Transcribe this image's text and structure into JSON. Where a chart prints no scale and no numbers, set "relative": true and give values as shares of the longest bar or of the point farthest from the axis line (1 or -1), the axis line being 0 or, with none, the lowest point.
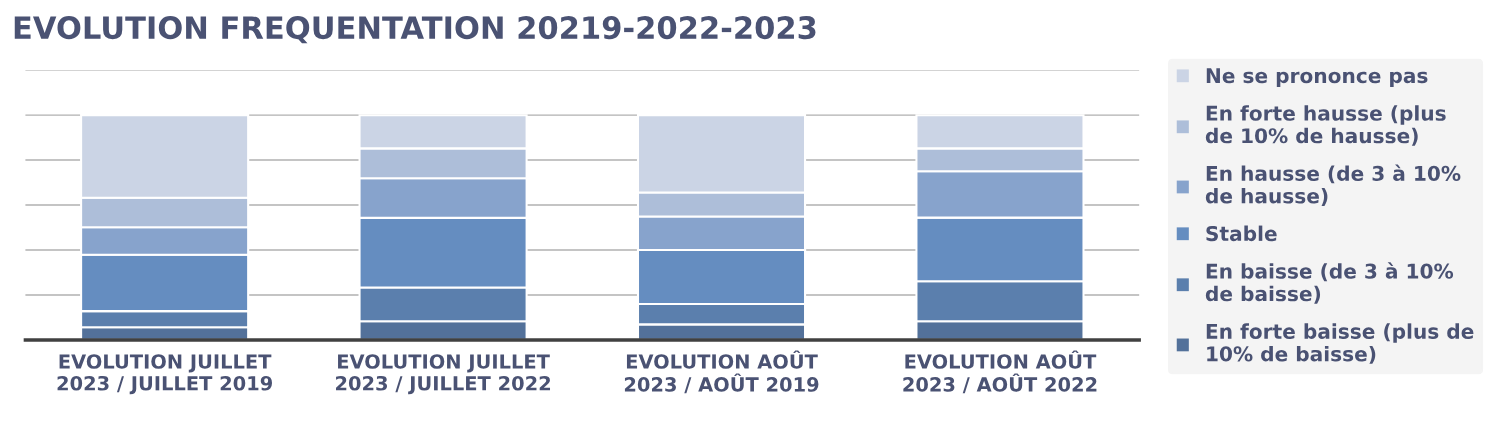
{
  "chart_data": {
    "type": "bar",
    "title": "EVOLUTION FREQUENTATION 20219-2022-2023",
    "categories": [
      "EVOLUTION JUILLET\n2023 / JUILLET 2019",
      "EVOLUTION JUILLET\n2023 / JUILLET 2022",
      "EVOLUTION AOÛT\n2023 / AOÛT 2019",
      "EVOLUTION AOÛT\n2023 / AOÛT 2022"
    ],
    "relative": true,
    "stacked": true,
    "grid": "y",
    "legend": "right",
    "series": [
      {
        "name": "En forte baisse (plus de\n10% de baisse)",
        "color": "#53719a",
        "values": [
          0.056,
          0.083,
          0.069,
          0.083
        ]
      },
      {
        "name": "En baisse (de 3 à 10%\nde baisse)",
        "color": "#5b7fad",
        "values": [
          0.072,
          0.15,
          0.091,
          0.178
        ]
      },
      {
        "name": "Stable",
        "color": "#658dc0",
        "values": [
          0.251,
          0.31,
          0.24,
          0.283
        ]
      },
      {
        "name": "En hausse (de 3 à 10%\nde hausse)",
        "color": "#87a3cc",
        "values": [
          0.122,
          0.176,
          0.149,
          0.206
        ]
      },
      {
        "name": "En forte hausse (plus\nde 10% de hausse)",
        "color": "#adbed9",
        "values": [
          0.131,
          0.133,
          0.107,
          0.102
        ]
      },
      {
        "name": "Ne se prononce pas",
        "color": "#cbd4e5",
        "values": [
          0.368,
          0.147,
          0.344,
          0.147
        ]
      }
    ]
  }
}
